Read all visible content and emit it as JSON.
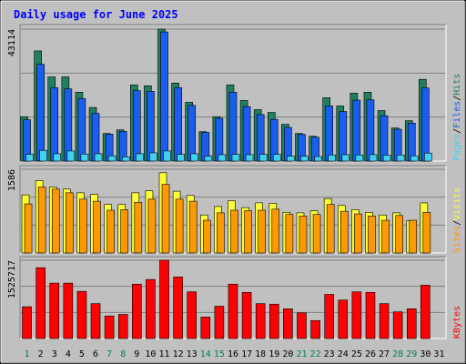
{
  "chart_data": [
    {
      "type": "bar",
      "title": "Daily usage for June 2025",
      "ymax_label": "43114",
      "right_labels": [
        "Pages",
        "Files",
        "Hits"
      ],
      "categories": [
        "1",
        "2",
        "3",
        "4",
        "5",
        "6",
        "7",
        "8",
        "9",
        "10",
        "11",
        "12",
        "13",
        "14",
        "15",
        "16",
        "17",
        "18",
        "19",
        "20",
        "21",
        "22",
        "23",
        "24",
        "25",
        "26",
        "27",
        "28",
        "29",
        "30",
        "31"
      ],
      "weekend_days": [
        "1",
        "7",
        "8",
        "14",
        "15",
        "21",
        "22",
        "28",
        "29"
      ],
      "ylim": [
        0,
        43114
      ],
      "series": [
        {
          "name": "Hits",
          "color": "#1f7f5f",
          "values": [
            14500,
            36000,
            27500,
            27500,
            22500,
            17500,
            9000,
            10200,
            24900,
            24600,
            43114,
            25500,
            19200,
            9600,
            14500,
            24900,
            19800,
            16800,
            15900,
            12000,
            9000,
            8100,
            20700,
            18000,
            22200,
            22500,
            16500,
            10800,
            13200,
            26700,
            null
          ]
        },
        {
          "name": "Files",
          "color": "#1a5ef0",
          "values": [
            13500,
            31600,
            24000,
            23600,
            20400,
            15600,
            8800,
            9700,
            23000,
            22800,
            42200,
            24000,
            18200,
            9400,
            14000,
            22500,
            17800,
            15200,
            13600,
            11000,
            8700,
            7800,
            18000,
            16200,
            19900,
            20000,
            14800,
            10400,
            12400,
            23900,
            null
          ]
        },
        {
          "name": "Pages",
          "color": "#40d0f0",
          "values": [
            2200,
            3500,
            2400,
            3300,
            2300,
            2400,
            1700,
            1400,
            2400,
            2700,
            3300,
            2200,
            2400,
            1600,
            2100,
            2200,
            2100,
            2200,
            2200,
            1600,
            1600,
            1500,
            2000,
            2100,
            2000,
            2100,
            1900,
            2000,
            1700,
            2600,
            null
          ]
        }
      ]
    },
    {
      "type": "bar",
      "ymax_label": "1586",
      "right_labels": [
        "Sites",
        "Visits"
      ],
      "categories": [
        "1",
        "2",
        "3",
        "4",
        "5",
        "6",
        "7",
        "8",
        "9",
        "10",
        "11",
        "12",
        "13",
        "14",
        "15",
        "16",
        "17",
        "18",
        "19",
        "20",
        "21",
        "22",
        "23",
        "24",
        "25",
        "26",
        "27",
        "28",
        "29",
        "30",
        "31"
      ],
      "ylim": [
        0,
        1586
      ],
      "series": [
        {
          "name": "Visits",
          "color": "#ffff33",
          "values": [
            1100,
            1370,
            1250,
            1210,
            1140,
            1110,
            920,
            920,
            1140,
            1180,
            1520,
            1170,
            1090,
            720,
            880,
            990,
            860,
            950,
            940,
            770,
            760,
            800,
            1030,
            900,
            820,
            770,
            720,
            760,
            610,
            950,
            null
          ]
        },
        {
          "name": "Sites",
          "color": "#ff9900",
          "values": [
            930,
            1250,
            1210,
            1140,
            1020,
            980,
            810,
            820,
            960,
            1020,
            1300,
            1020,
            980,
            620,
            760,
            810,
            800,
            810,
            830,
            730,
            700,
            730,
            920,
            790,
            740,
            700,
            620,
            710,
            620,
            770,
            null
          ]
        }
      ]
    },
    {
      "type": "bar",
      "ymax_label": "1525717",
      "right_labels": [
        "KBytes"
      ],
      "categories": [
        "1",
        "2",
        "3",
        "4",
        "5",
        "6",
        "7",
        "8",
        "9",
        "10",
        "11",
        "12",
        "13",
        "14",
        "15",
        "16",
        "17",
        "18",
        "19",
        "20",
        "21",
        "22",
        "23",
        "24",
        "25",
        "26",
        "27",
        "28",
        "29",
        "30",
        "31"
      ],
      "ylim": [
        0,
        1525717
      ],
      "series": [
        {
          "name": "KBytes",
          "color": "#ff0000",
          "values": [
            620000,
            1380000,
            1080000,
            1080000,
            920000,
            680000,
            440000,
            470000,
            1060000,
            1150000,
            1525717,
            1200000,
            910000,
            420000,
            630000,
            1060000,
            900000,
            680000,
            670000,
            580000,
            500000,
            350000,
            860000,
            750000,
            910000,
            900000,
            680000,
            520000,
            580000,
            1040000,
            null
          ]
        }
      ]
    }
  ]
}
